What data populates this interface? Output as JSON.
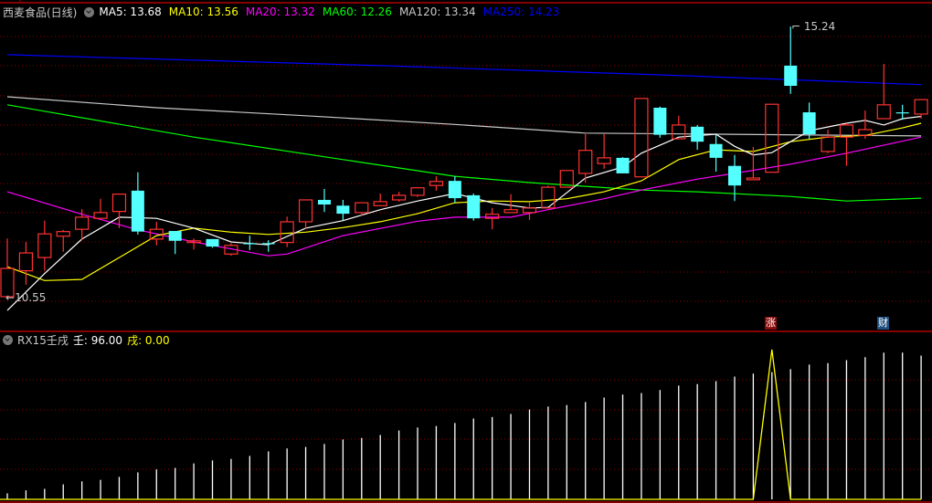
{
  "header": {
    "title": "西麦食品(日线)",
    "mas": [
      {
        "text": "MA5: 13.68",
        "color": "#ffffff"
      },
      {
        "text": "MA10: 13.56",
        "color": "#ffff00"
      },
      {
        "text": "MA20: 13.32",
        "color": "#ff00ff"
      },
      {
        "text": "MA60: 12.26",
        "color": "#00ff00"
      },
      {
        "text": "MA120: 13.34",
        "color": "#c8c8c8"
      },
      {
        "text": "MA250: 14.23",
        "color": "#0000ff"
      }
    ]
  },
  "indicator": {
    "title": "RX15壬戌",
    "ren_label": "壬: 96.00",
    "xu_label": "戌: 0.00"
  },
  "badges": [
    {
      "text": "涨",
      "color": "#8b0a0a"
    },
    {
      "text": "财",
      "color": "#1e4f7e"
    }
  ],
  "colors": {
    "up": "#ff3232",
    "down": "#54ffff",
    "grid": "#8b0000",
    "border": "#b00000"
  },
  "chart_data": [
    {
      "type": "candlestick",
      "high_label": "15.24",
      "low_label": "10.55",
      "candles": [
        [
          10.55,
          11.56,
          10.55,
          11.04
        ],
        [
          11.0,
          11.5,
          10.76,
          11.31
        ],
        [
          11.23,
          11.87,
          11.0,
          11.64
        ],
        [
          11.6,
          11.71,
          11.33,
          11.68
        ],
        [
          11.72,
          12.07,
          11.53,
          11.93
        ],
        [
          11.91,
          12.25,
          11.91,
          12.01
        ],
        [
          12.03,
          12.33,
          11.74,
          12.33
        ],
        [
          12.39,
          12.71,
          11.63,
          11.68
        ],
        [
          11.55,
          11.85,
          11.44,
          11.72
        ],
        [
          11.69,
          11.69,
          11.29,
          11.52
        ],
        [
          11.49,
          11.56,
          11.37,
          11.52
        ],
        [
          11.55,
          11.55,
          11.4,
          11.42
        ],
        [
          11.29,
          11.48,
          11.26,
          11.44
        ],
        [
          11.47,
          11.61,
          11.36,
          11.46
        ],
        [
          11.47,
          11.53,
          11.33,
          11.46
        ],
        [
          11.49,
          11.94,
          11.41,
          11.85
        ],
        [
          11.85,
          12.23,
          11.72,
          12.23
        ],
        [
          12.23,
          12.42,
          12.02,
          12.15
        ],
        [
          12.13,
          12.23,
          11.87,
          11.99
        ],
        [
          12.01,
          12.18,
          11.96,
          12.18
        ],
        [
          12.13,
          12.34,
          12.13,
          12.2
        ],
        [
          12.23,
          12.37,
          12.2,
          12.31
        ],
        [
          12.31,
          12.44,
          12.28,
          12.44
        ],
        [
          12.48,
          12.64,
          12.39,
          12.55
        ],
        [
          12.56,
          12.64,
          12.18,
          12.26
        ],
        [
          12.31,
          12.34,
          11.87,
          11.91
        ],
        [
          11.91,
          12.09,
          11.72,
          11.98
        ],
        [
          12.01,
          12.33,
          12.01,
          12.06
        ],
        [
          12.01,
          12.18,
          11.88,
          12.09
        ],
        [
          12.09,
          12.48,
          12.09,
          12.45
        ],
        [
          12.45,
          12.74,
          12.45,
          12.74
        ],
        [
          12.69,
          13.37,
          12.53,
          13.09
        ],
        [
          12.86,
          13.37,
          12.77,
          12.96
        ],
        [
          12.96,
          12.97,
          12.69,
          12.69
        ],
        [
          12.63,
          13.99,
          12.63,
          13.99
        ],
        [
          13.83,
          13.85,
          13.31,
          13.36
        ],
        [
          13.29,
          13.69,
          13.29,
          13.53
        ],
        [
          13.5,
          13.53,
          13.1,
          13.24
        ],
        [
          13.2,
          13.36,
          12.72,
          12.96
        ],
        [
          12.82,
          13.01,
          12.21,
          12.48
        ],
        [
          12.58,
          13.15,
          12.58,
          12.61
        ],
        [
          12.71,
          13.89,
          12.71,
          13.89
        ],
        [
          14.56,
          15.24,
          14.07,
          14.21
        ],
        [
          13.75,
          13.92,
          13.29,
          13.37
        ],
        [
          13.07,
          13.45,
          13.04,
          13.32
        ],
        [
          13.32,
          13.56,
          12.82,
          13.53
        ],
        [
          13.35,
          13.78,
          13.29,
          13.45
        ],
        [
          13.64,
          14.59,
          13.64,
          13.88
        ],
        [
          13.74,
          13.88,
          13.62,
          13.73
        ],
        [
          13.72,
          13.97,
          13.64,
          13.97
        ]
      ],
      "moving_averages": [
        {
          "name": "MA250",
          "color": "#0000ff",
          "points": [
            [
              0,
              14.75
            ],
            [
              20,
              14.56
            ],
            [
              35,
              14.4
            ],
            [
              49,
              14.23
            ]
          ]
        },
        {
          "name": "MA120",
          "color": "#c8c8c8",
          "points": [
            [
              0,
              14.02
            ],
            [
              8,
              13.83
            ],
            [
              16,
              13.69
            ],
            [
              24,
              13.54
            ],
            [
              31,
              13.39
            ],
            [
              38,
              13.37
            ],
            [
              49,
              13.34
            ]
          ]
        },
        {
          "name": "MA60",
          "color": "#00ff00",
          "points": [
            [
              0,
              13.88
            ],
            [
              10,
              13.32
            ],
            [
              19,
              12.88
            ],
            [
              24,
              12.64
            ],
            [
              28,
              12.53
            ],
            [
              34,
              12.4
            ],
            [
              37,
              12.37
            ],
            [
              42,
              12.29
            ],
            [
              45,
              12.21
            ],
            [
              49,
              12.26
            ]
          ]
        },
        {
          "name": "MA20",
          "color": "#ff00ff",
          "points": [
            [
              0,
              12.37
            ],
            [
              4,
              11.98
            ],
            [
              7,
              11.71
            ],
            [
              10,
              11.5
            ],
            [
              14,
              11.26
            ],
            [
              15,
              11.29
            ],
            [
              18,
              11.61
            ],
            [
              22,
              11.86
            ],
            [
              24,
              11.93
            ],
            [
              27,
              11.93
            ],
            [
              29,
              12.06
            ],
            [
              32,
              12.25
            ],
            [
              34,
              12.4
            ],
            [
              37,
              12.59
            ],
            [
              39,
              12.69
            ],
            [
              42,
              12.85
            ],
            [
              45,
              13.04
            ],
            [
              49,
              13.32
            ]
          ]
        },
        {
          "name": "MA10",
          "color": "#ffff00",
          "points": [
            [
              0,
              11.07
            ],
            [
              2,
              10.83
            ],
            [
              4,
              10.85
            ],
            [
              6,
              11.23
            ],
            [
              8,
              11.61
            ],
            [
              10,
              11.74
            ],
            [
              12,
              11.67
            ],
            [
              14,
              11.63
            ],
            [
              16,
              11.67
            ],
            [
              18,
              11.75
            ],
            [
              20,
              11.85
            ],
            [
              22,
              11.99
            ],
            [
              24,
              12.18
            ],
            [
              26,
              12.21
            ],
            [
              28,
              12.2
            ],
            [
              30,
              12.25
            ],
            [
              32,
              12.37
            ],
            [
              34,
              12.56
            ],
            [
              36,
              12.93
            ],
            [
              38,
              13.1
            ],
            [
              40,
              13.07
            ],
            [
              42,
              13.24
            ],
            [
              44,
              13.32
            ],
            [
              46,
              13.35
            ],
            [
              48,
              13.48
            ],
            [
              49,
              13.56
            ]
          ]
        },
        {
          "name": "MA5",
          "color": "#ffffff",
          "points": [
            [
              0,
              10.31
            ],
            [
              2,
              10.95
            ],
            [
              4,
              11.55
            ],
            [
              6,
              11.93
            ],
            [
              8,
              11.91
            ],
            [
              10,
              11.74
            ],
            [
              12,
              11.5
            ],
            [
              14,
              11.45
            ],
            [
              16,
              11.74
            ],
            [
              18,
              11.87
            ],
            [
              20,
              12.06
            ],
            [
              22,
              12.21
            ],
            [
              24,
              12.34
            ],
            [
              26,
              12.18
            ],
            [
              28,
              12.09
            ],
            [
              29,
              12.1
            ],
            [
              31,
              12.61
            ],
            [
              33,
              12.8
            ],
            [
              34,
              13.04
            ],
            [
              36,
              13.32
            ],
            [
              38,
              13.37
            ],
            [
              39,
              13.16
            ],
            [
              40,
              13.01
            ],
            [
              41,
              13.05
            ],
            [
              43,
              13.43
            ],
            [
              45,
              13.56
            ],
            [
              46,
              13.61
            ],
            [
              47,
              13.53
            ],
            [
              48,
              13.64
            ],
            [
              49,
              13.68
            ]
          ]
        }
      ]
    },
    {
      "type": "bar",
      "series": [
        {
          "name": "壬",
          "color": "#ffffff",
          "values": [
            4,
            6,
            7,
            10,
            12,
            13,
            15,
            18,
            20,
            21,
            24,
            26,
            27,
            29,
            32,
            34,
            35,
            37,
            40,
            41,
            43,
            46,
            48,
            49,
            51,
            54,
            55,
            57,
            60,
            62,
            63,
            65,
            68,
            70,
            71,
            73,
            76,
            77,
            79,
            82,
            84,
            85,
            87,
            90,
            91,
            93,
            95,
            98,
            98,
            96
          ]
        },
        {
          "name": "戌",
          "color": "#ffff00",
          "values": [
            0,
            0,
            0,
            0,
            0,
            0,
            0,
            0,
            0,
            0,
            0,
            0,
            0,
            0,
            0,
            0,
            0,
            0,
            0,
            0,
            0,
            0,
            0,
            0,
            0,
            0,
            0,
            0,
            0,
            0,
            0,
            0,
            0,
            0,
            0,
            0,
            0,
            0,
            0,
            0,
            0,
            100,
            0,
            0,
            0,
            0,
            0,
            0,
            0,
            0
          ]
        }
      ],
      "ylim": [
        0,
        100
      ]
    }
  ]
}
